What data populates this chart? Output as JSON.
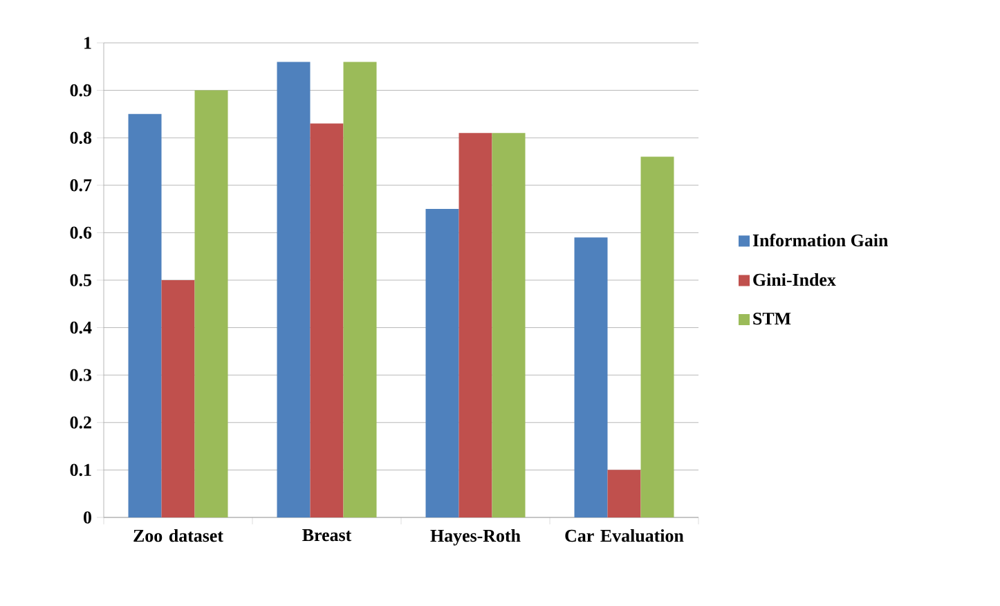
{
  "chart_data": {
    "type": "bar",
    "categories": [
      "Zoo dataset",
      "Breast",
      "Hayes-Roth",
      "Car Evaluation"
    ],
    "series": [
      {
        "name": "Information Gain",
        "color": "#4f81bd",
        "values": [
          0.85,
          0.96,
          0.65,
          0.59
        ]
      },
      {
        "name": "Gini-Index",
        "color": "#c0504d",
        "values": [
          0.5,
          0.83,
          0.81,
          0.1
        ]
      },
      {
        "name": "STM",
        "color": "#9bbb59",
        "values": [
          0.9,
          0.96,
          0.81,
          0.76
        ]
      }
    ],
    "ylim": [
      0,
      1
    ],
    "yticks": [
      0,
      0.1,
      0.2,
      0.3,
      0.4,
      0.5,
      0.6,
      0.7,
      0.8,
      0.9,
      1
    ],
    "grid": "y",
    "legend": "right"
  }
}
